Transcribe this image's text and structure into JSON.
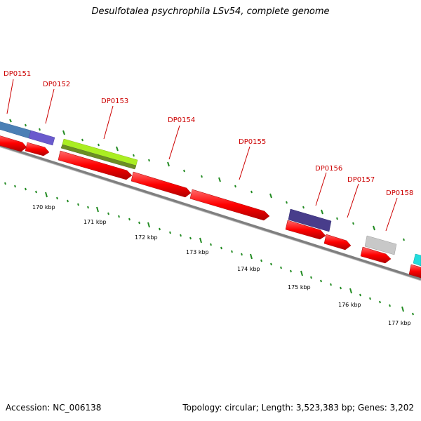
{
  "title": "Desulfotalea psychrophila LSv54, complete genome",
  "footer": {
    "accession": "Accession: NC_006138",
    "summary": "Topology: circular; Length: 3,523,383 bp; Genes: 3,202"
  },
  "colors": {
    "label": "#cc0000",
    "cds": "#ff0000",
    "backbone": "#808080",
    "tick": "#228b22"
  },
  "gene_labels": [
    "DP0151",
    "DP0152",
    "DP0153",
    "DP0154",
    "DP0155",
    "DP0156",
    "DP0157",
    "DP0158"
  ],
  "scale_labels": [
    "170 kbp",
    "171 kbp",
    "172 kbp",
    "173 kbp",
    "174 kbp",
    "175 kbp",
    "176 kbp",
    "177 kbp"
  ]
}
